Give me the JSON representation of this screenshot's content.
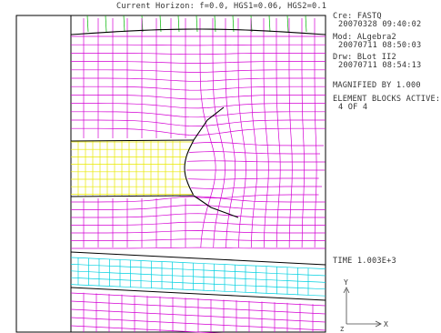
{
  "title": "Current Horizon: f=0.0, HGS1=0.06, HGS2=0.1",
  "info": {
    "created_label": "Cre: FASTQ",
    "created_stamp": "20070328 09:40:02",
    "modified_label": "Mod: ALgebra2",
    "modified_stamp": "20070711 08:50:03",
    "drawn_label": "Drw: BLot II2",
    "drawn_stamp": "20070711 08:54:13",
    "magnification": "MAGNIFIED BY 1.000",
    "blocks_label": "ELEMENT BLOCKS ACTIVE:",
    "blocks_value": "4 OF 4",
    "time": "TIME 1.003E+3"
  },
  "axes": {
    "y_label": "Y",
    "x_label": "X",
    "z_label": "Z"
  },
  "colors": {
    "block_magenta": "#d400d4",
    "block_yellow": "#e8e800",
    "block_cyan": "#00d0e0",
    "block_green": "#00b400",
    "boundary": "#000000"
  }
}
